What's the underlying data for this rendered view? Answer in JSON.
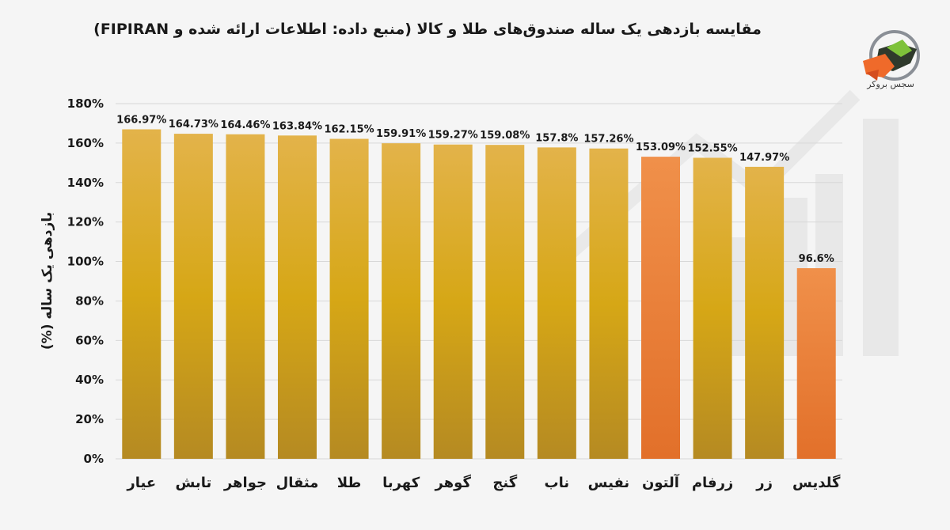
{
  "chart_data": {
    "type": "bar",
    "title": "مقایسه بازدهی یک ساله صندوق‌های طلا و کالا (منبع داده: اطلاعات ارائه شده و FIPIRAN)",
    "xlabel": "",
    "ylabel": "بازدهی یک ساله (%)",
    "ylim": [
      0,
      180
    ],
    "yticks": [
      0,
      20,
      40,
      60,
      80,
      100,
      120,
      140,
      160,
      180
    ],
    "ytick_labels": [
      "0%",
      "20%",
      "40%",
      "60%",
      "80%",
      "100%",
      "120%",
      "140%",
      "160%",
      "180%"
    ],
    "categories": [
      "عیار",
      "تابش",
      "جواهر",
      "مثقال",
      "طلا",
      "کهربا",
      "گوهر",
      "گنج",
      "ناب",
      "نفیس",
      "آلتون",
      "زرفام",
      "زر",
      "گلدیس"
    ],
    "values": [
      166.97,
      164.73,
      164.46,
      163.84,
      162.15,
      159.91,
      159.27,
      159.08,
      157.8,
      157.26,
      153.09,
      152.55,
      147.97,
      96.6
    ],
    "value_labels": [
      "166.97%",
      "164.73%",
      "164.46%",
      "163.84%",
      "162.15%",
      "159.91%",
      "159.27%",
      "159.08%",
      "157.8%",
      "157.26%",
      "153.09%",
      "152.55%",
      "147.97%",
      "96.6%"
    ],
    "highlight": [
      false,
      false,
      false,
      false,
      false,
      false,
      false,
      false,
      false,
      false,
      true,
      false,
      false,
      true
    ],
    "grid": true,
    "colors": {
      "bar_top": "#e3b34a",
      "bar_mid": "#d6a716",
      "bar_bottom": "#b58a22",
      "highlight_top": "#f0904a",
      "highlight_bottom": "#e2702a",
      "grid": "#d8d8d8"
    }
  },
  "logo": {
    "icon": "bull-head-logo-icon",
    "text": "سجس بروکر"
  }
}
